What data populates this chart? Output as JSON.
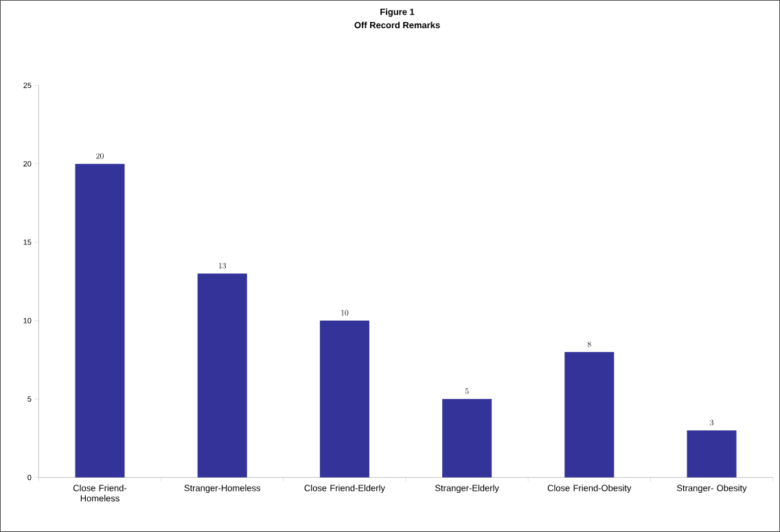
{
  "chart_data": {
    "type": "bar",
    "title": "Figure 1",
    "subtitle": "Off Record Remarks",
    "categories": [
      "Close Friend-Homeless",
      "Stranger-Homeless",
      "Close Friend-Elderly",
      "Stranger-Elderly",
      "Close Friend-Obesity",
      "Stranger- Obesity"
    ],
    "values": [
      20,
      13,
      10,
      5,
      8,
      3
    ],
    "color": "#333399",
    "ylim": [
      0,
      25
    ],
    "yticks": [
      0,
      5,
      10,
      15,
      20,
      25
    ],
    "grid": false,
    "data_labels": true
  }
}
